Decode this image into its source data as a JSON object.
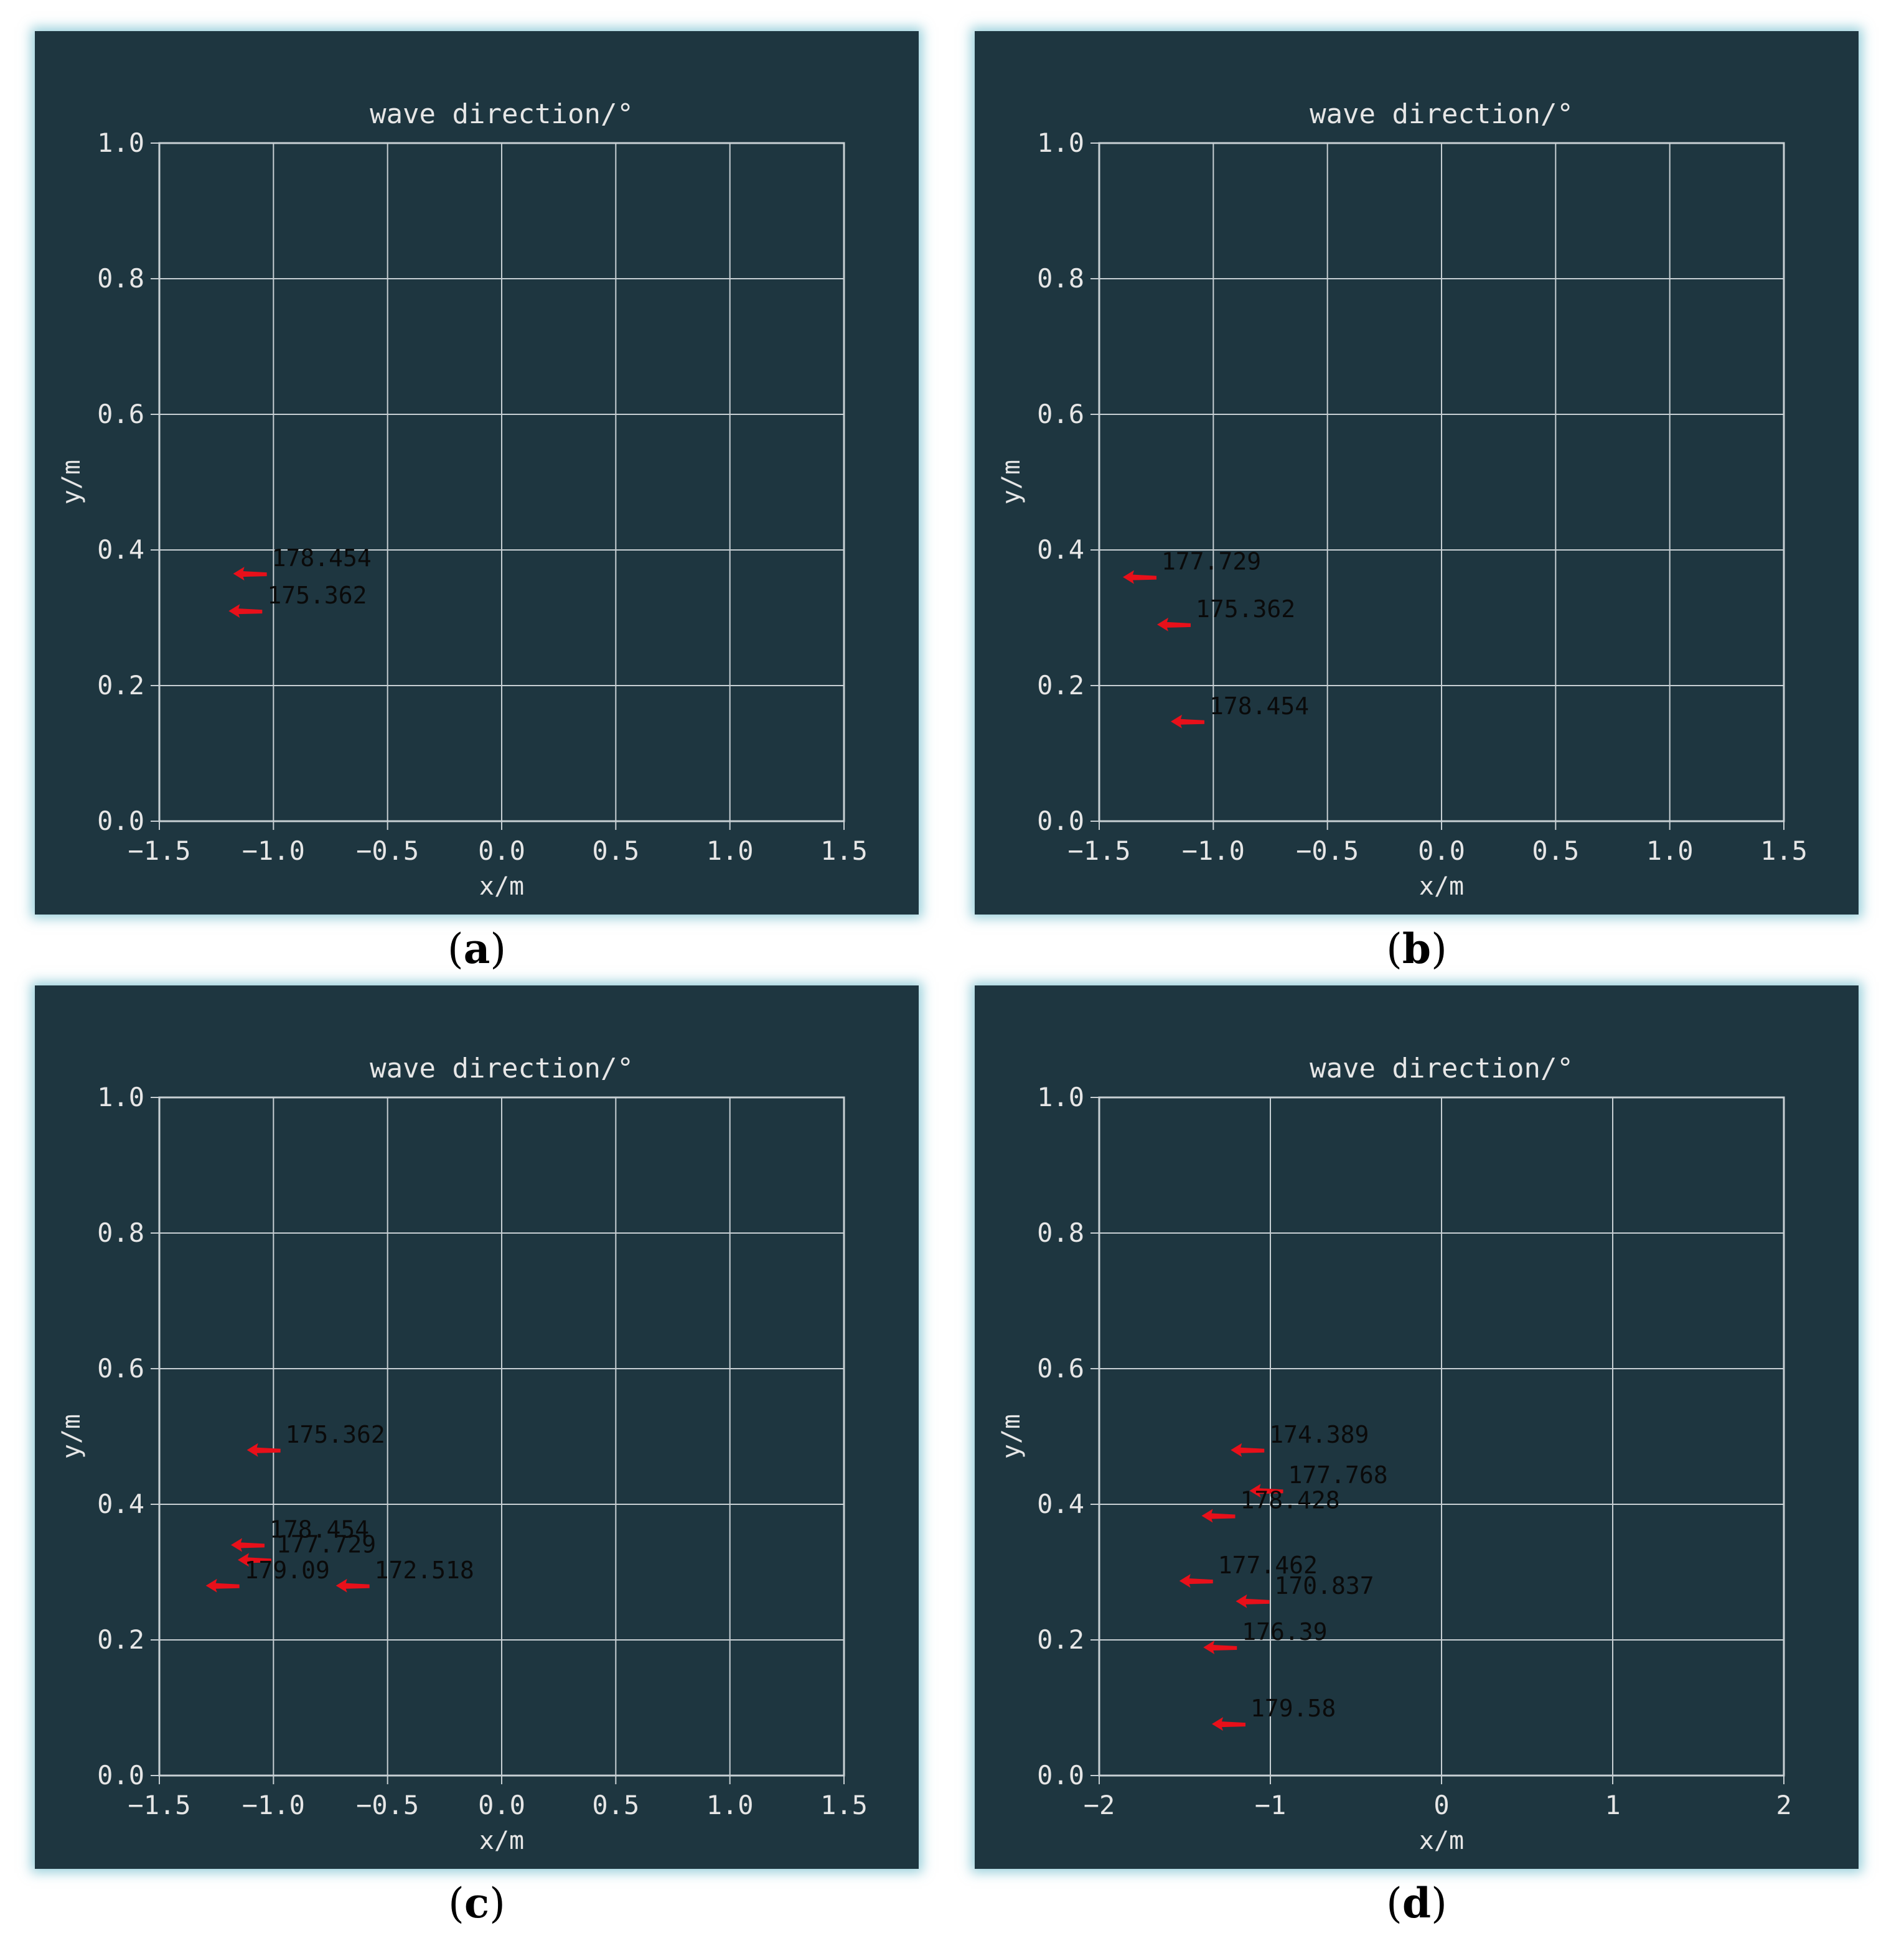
{
  "figures": [
    {
      "id": "a",
      "caption_letter": "a",
      "chart_data": {
        "type": "scatter",
        "title": "wave direction/°",
        "xlabel": "x/m",
        "ylabel": "y/m",
        "xlim": [
          -1.5,
          1.5
        ],
        "ylim": [
          0.0,
          1.0
        ],
        "xticks": [
          "−1.5",
          "−1.0",
          "−0.5",
          "0.0",
          "0.5",
          "1.0",
          "1.5"
        ],
        "xtick_values": [
          -1.5,
          -1.0,
          -0.5,
          0.0,
          0.5,
          1.0,
          1.5
        ],
        "yticks": [
          "0.0",
          "0.2",
          "0.4",
          "0.6",
          "0.8",
          "1.0"
        ],
        "ytick_values": [
          0.0,
          0.2,
          0.4,
          0.6,
          0.8,
          1.0
        ],
        "grid": true,
        "marker": "red arrow pointing left",
        "points": [
          {
            "x": -1.1,
            "y": 0.365,
            "label": "178.454"
          },
          {
            "x": -1.12,
            "y": 0.31,
            "label": "175.362"
          }
        ]
      }
    },
    {
      "id": "b",
      "caption_letter": "b",
      "chart_data": {
        "type": "scatter",
        "title": "wave direction/°",
        "xlabel": "x/m",
        "ylabel": "y/m",
        "xlim": [
          -1.5,
          1.5
        ],
        "ylim": [
          0.0,
          1.0
        ],
        "xticks": [
          "−1.5",
          "−1.0",
          "−0.5",
          "0.0",
          "0.5",
          "1.0",
          "1.5"
        ],
        "xtick_values": [
          -1.5,
          -1.0,
          -0.5,
          0.0,
          0.5,
          1.0,
          1.5
        ],
        "yticks": [
          "0.0",
          "0.2",
          "0.4",
          "0.6",
          "0.8",
          "1.0"
        ],
        "ytick_values": [
          0.0,
          0.2,
          0.4,
          0.6,
          0.8,
          1.0
        ],
        "grid": true,
        "marker": "red arrow pointing left",
        "points": [
          {
            "x": -1.32,
            "y": 0.36,
            "label": "177.729"
          },
          {
            "x": -1.17,
            "y": 0.29,
            "label": "175.362"
          },
          {
            "x": -1.11,
            "y": 0.147,
            "label": "178.454"
          }
        ]
      }
    },
    {
      "id": "c",
      "caption_letter": "c",
      "chart_data": {
        "type": "scatter",
        "title": "wave direction/°",
        "xlabel": "x/m",
        "ylabel": "y/m",
        "xlim": [
          -1.5,
          1.5
        ],
        "ylim": [
          0.0,
          1.0
        ],
        "xticks": [
          "−1.5",
          "−1.0",
          "−0.5",
          "0.0",
          "0.5",
          "1.0",
          "1.5"
        ],
        "xtick_values": [
          -1.5,
          -1.0,
          -0.5,
          0.0,
          0.5,
          1.0,
          1.5
        ],
        "yticks": [
          "0.0",
          "0.2",
          "0.4",
          "0.6",
          "0.8",
          "1.0"
        ],
        "ytick_values": [
          0.0,
          0.2,
          0.4,
          0.6,
          0.8,
          1.0
        ],
        "grid": true,
        "marker": "red arrow pointing left",
        "points": [
          {
            "x": -1.04,
            "y": 0.48,
            "label": "175.362"
          },
          {
            "x": -1.11,
            "y": 0.34,
            "label": "178.454"
          },
          {
            "x": -1.08,
            "y": 0.318,
            "label": "177.729"
          },
          {
            "x": -1.22,
            "y": 0.28,
            "label": "179.09"
          },
          {
            "x": -0.65,
            "y": 0.28,
            "label": "172.518"
          }
        ]
      }
    },
    {
      "id": "d",
      "caption_letter": "d",
      "chart_data": {
        "type": "scatter",
        "title": "wave direction/°",
        "xlabel": "x/m",
        "ylabel": "y/m",
        "xlim": [
          -2,
          2
        ],
        "ylim": [
          0.0,
          1.0
        ],
        "xticks": [
          "−2",
          "−1",
          "0",
          "1",
          "2"
        ],
        "xtick_values": [
          -2,
          -1,
          0,
          1,
          2
        ],
        "yticks": [
          "0.0",
          "0.2",
          "0.4",
          "0.6",
          "0.8",
          "1.0"
        ],
        "ytick_values": [
          0.0,
          0.2,
          0.4,
          0.6,
          0.8,
          1.0
        ],
        "grid": true,
        "marker": "red arrow pointing left",
        "points": [
          {
            "x": -1.13,
            "y": 0.48,
            "label": "174.389"
          },
          {
            "x": -1.02,
            "y": 0.42,
            "label": "177.768"
          },
          {
            "x": -1.3,
            "y": 0.383,
            "label": "178.428"
          },
          {
            "x": -1.43,
            "y": 0.287,
            "label": "177.462"
          },
          {
            "x": -1.1,
            "y": 0.257,
            "label": "170.837"
          },
          {
            "x": -1.29,
            "y": 0.189,
            "label": "176.39"
          },
          {
            "x": -1.24,
            "y": 0.076,
            "label": "179.58"
          }
        ]
      }
    }
  ]
}
